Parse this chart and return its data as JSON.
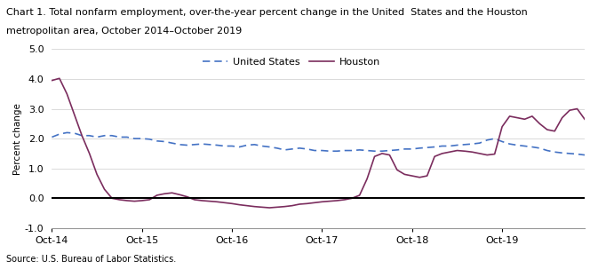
{
  "title_line1": "Chart 1. Total nonfarm employment, over-the-year percent change in the United  States and the Houston",
  "title_line2": "metropolitan area, October 2014–October 2019",
  "ylabel": "Percent change",
  "source": "Source: U.S. Bureau of Labor Statistics.",
  "ylim": [
    -1.0,
    5.0
  ],
  "yticks": [
    -1.0,
    0.0,
    1.0,
    2.0,
    3.0,
    4.0,
    5.0
  ],
  "xtick_positions": [
    0,
    12,
    24,
    36,
    48,
    60
  ],
  "xtick_labels": [
    "Oct-14",
    "Oct-15",
    "Oct-16",
    "Oct-17",
    "Oct-18",
    "Oct-19"
  ],
  "us_color": "#4472C4",
  "houston_color": "#7B2D5E",
  "us_data": [
    2.05,
    2.15,
    2.2,
    2.18,
    2.1,
    2.1,
    2.05,
    2.1,
    2.1,
    2.05,
    2.05,
    2.0,
    2.0,
    1.98,
    1.92,
    1.9,
    1.85,
    1.8,
    1.78,
    1.8,
    1.82,
    1.8,
    1.78,
    1.75,
    1.75,
    1.72,
    1.78,
    1.8,
    1.75,
    1.72,
    1.68,
    1.62,
    1.65,
    1.68,
    1.65,
    1.6,
    1.6,
    1.58,
    1.58,
    1.6,
    1.6,
    1.62,
    1.6,
    1.58,
    1.58,
    1.6,
    1.62,
    1.65,
    1.65,
    1.68,
    1.7,
    1.72,
    1.75,
    1.75,
    1.78,
    1.8,
    1.82,
    1.85,
    1.95,
    2.0,
    1.9,
    1.82,
    1.78,
    1.75,
    1.72,
    1.68,
    1.6,
    1.55,
    1.52,
    1.5,
    1.48,
    1.45
  ],
  "houston_data": [
    3.95,
    4.02,
    3.5,
    2.8,
    2.1,
    1.5,
    0.8,
    0.3,
    0.0,
    -0.05,
    -0.08,
    -0.1,
    -0.08,
    -0.05,
    0.1,
    0.15,
    0.18,
    0.12,
    0.05,
    -0.05,
    -0.08,
    -0.1,
    -0.12,
    -0.15,
    -0.18,
    -0.22,
    -0.25,
    -0.28,
    -0.3,
    -0.32,
    -0.3,
    -0.28,
    -0.25,
    -0.2,
    -0.18,
    -0.15,
    -0.12,
    -0.1,
    -0.08,
    -0.05,
    0.0,
    0.1,
    0.65,
    1.4,
    1.5,
    1.45,
    0.95,
    0.8,
    0.75,
    0.7,
    0.75,
    1.4,
    1.5,
    1.55,
    1.6,
    1.58,
    1.55,
    1.5,
    1.45,
    1.48,
    2.4,
    2.75,
    2.7,
    2.65,
    2.75,
    2.5,
    2.3,
    2.25,
    2.7,
    2.95,
    3.0,
    2.65
  ]
}
